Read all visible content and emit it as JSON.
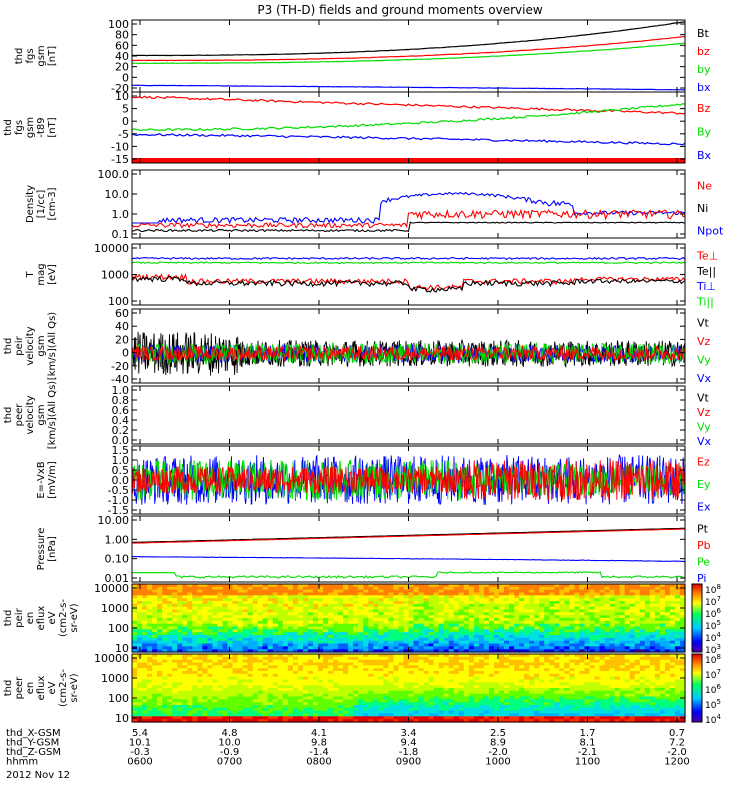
{
  "title": "P3 (TH-D) fields and ground moments overview",
  "date": "2012 Nov 12",
  "colors": {
    "black": "#000000",
    "red": "#ff0000",
    "green": "#00dd00",
    "blue": "#0000ff"
  },
  "chart_data": [
    {
      "type": "line",
      "id": "fgs_gsm",
      "ylabel": [
        "thd",
        "fgs",
        "gsm",
        "[nT]"
      ],
      "ylim": [
        -30,
        100
      ],
      "yticks": [
        "100",
        "80",
        "60",
        "40",
        "20",
        "0",
        "-20"
      ],
      "legend": [
        "Bt",
        "bz",
        "by",
        "bx"
      ],
      "series": [
        {
          "name": "Bt",
          "start": 36,
          "end": 97,
          "curve": 2.5
        },
        {
          "name": "bz",
          "start": 27,
          "end": 70,
          "curve": 2.5
        },
        {
          "name": "by",
          "start": 22,
          "end": 58,
          "curve": 2.5
        },
        {
          "name": "bx",
          "start": -18,
          "end": -26,
          "curve": 1.2
        }
      ]
    },
    {
      "type": "line",
      "id": "fgs_gsm_t89",
      "ylabel": [
        "thd",
        "fgs",
        "gsm",
        "-t89",
        "[nT]"
      ],
      "ylim": [
        -20,
        10
      ],
      "yticks": [
        "10",
        "5",
        "0",
        "-5",
        "-10",
        "-15"
      ],
      "legend": [
        "Bz",
        "By",
        "Bx"
      ],
      "series": [
        {
          "name": "Bz",
          "start": 8,
          "end": 1,
          "curve": 1.0
        },
        {
          "name": "By",
          "start": -6,
          "end": 5,
          "curve": 2.0
        },
        {
          "name": "Bx",
          "start": -8,
          "end": -12,
          "curve": 1.3
        }
      ]
    },
    {
      "type": "line",
      "id": "density",
      "ylabel": [
        "Density",
        "[1/cc]",
        "[cm-3]"
      ],
      "log": true,
      "ylim": [
        0.1,
        150
      ],
      "yticks": [
        "100.0",
        "10.0",
        "1.0",
        "0.1"
      ],
      "legend": [
        "Ne",
        "Ni",
        "Npot"
      ]
    },
    {
      "type": "line",
      "id": "temperature",
      "ylabel": [
        "T",
        "mag",
        "[eV]"
      ],
      "log": true,
      "ylim": [
        20,
        20000
      ],
      "yticks": [
        "10000",
        "1000",
        "100"
      ],
      "legend": [
        "Te⊥",
        "Te||",
        "Ti⊥",
        "Ti||"
      ]
    },
    {
      "type": "line",
      "id": "peir_velocity",
      "ylabel": [
        "thd",
        "peir",
        "velocity",
        "gsm",
        "[km/s](All Qs)"
      ],
      "ylim": [
        -40,
        60
      ],
      "yticks": [
        "60",
        "40",
        "20",
        "0",
        "-20",
        "-40"
      ],
      "legend": [
        "Vt",
        "Vz",
        "Vy",
        "Vx"
      ]
    },
    {
      "type": "line",
      "id": "peer_velocity",
      "ylabel": [
        "thd",
        "peer",
        "velocity",
        "gsm",
        "[km/s](All Qs)"
      ],
      "ylim": [
        0,
        1
      ],
      "yticks": [
        "1.0",
        "0.8",
        "0.6",
        "0.4",
        "0.2",
        "0.0"
      ],
      "legend": [
        "Vt",
        "Vz",
        "Vy",
        "Vx"
      ]
    },
    {
      "type": "line",
      "id": "e_vxb",
      "ylabel": [
        "E=-VxB",
        "[mV/m]"
      ],
      "ylim": [
        -1.5,
        1.5
      ],
      "yticks": [
        "1.5",
        "1.0",
        "0.5",
        "0.0",
        "-0.5",
        "-1.0",
        "-1.5"
      ],
      "legend": [
        "Ez",
        "Ey",
        "Ex"
      ]
    },
    {
      "type": "line",
      "id": "pressure",
      "ylabel": [
        "Pressure",
        "[nPa]"
      ],
      "log": true,
      "ylim": [
        0.007,
        12
      ],
      "yticks": [
        "10.00",
        "1.00",
        "0.10",
        "0.01"
      ],
      "legend": [
        "Pt",
        "Pb",
        "Pe",
        "Pi"
      ]
    },
    {
      "type": "heatmap",
      "id": "peir_en_eflux",
      "ylabel": [
        "thd",
        "peir",
        "en",
        "eflux",
        "eV",
        "(cm2-s-",
        "sr-eV)"
      ],
      "yticks": [
        "10000",
        "1000",
        "100",
        "10"
      ],
      "colorbar": [
        "10^8",
        "10^7",
        "10^6",
        "10^5",
        "10^4",
        "10^3"
      ]
    },
    {
      "type": "heatmap",
      "id": "peer_en_eflux",
      "ylabel": [
        "thd",
        "peer",
        "en",
        "eflux",
        "eV",
        "(cm2-s-",
        "sr-eV)"
      ],
      "yticks": [
        "10000",
        "1000",
        "100",
        "10"
      ],
      "colorbar": [
        "10^8",
        "10^7",
        "10^6",
        "10^5",
        "10^4"
      ]
    }
  ],
  "xaxis": {
    "row_labels": [
      "thd_X-GSM",
      "thd_Y-GSM",
      "thd_Z-GSM",
      "hhmm"
    ],
    "columns": [
      {
        "x": "5.4",
        "y": "10.1",
        "z": "-0.3",
        "t": "0600"
      },
      {
        "x": "4.8",
        "y": "10.0",
        "z": "-0.9",
        "t": "0700"
      },
      {
        "x": "4.1",
        "y": "9.8",
        "z": "-1.4",
        "t": "0800"
      },
      {
        "x": "3.4",
        "y": "9.4",
        "z": "-1.8",
        "t": "0900"
      },
      {
        "x": "2.5",
        "y": "8.9",
        "z": "-2.0",
        "t": "1000"
      },
      {
        "x": "1.7",
        "y": "8.1",
        "z": "-2.1",
        "t": "1100"
      },
      {
        "x": "0.7",
        "y": "7.2",
        "z": "-2.0",
        "t": "1200"
      }
    ]
  }
}
